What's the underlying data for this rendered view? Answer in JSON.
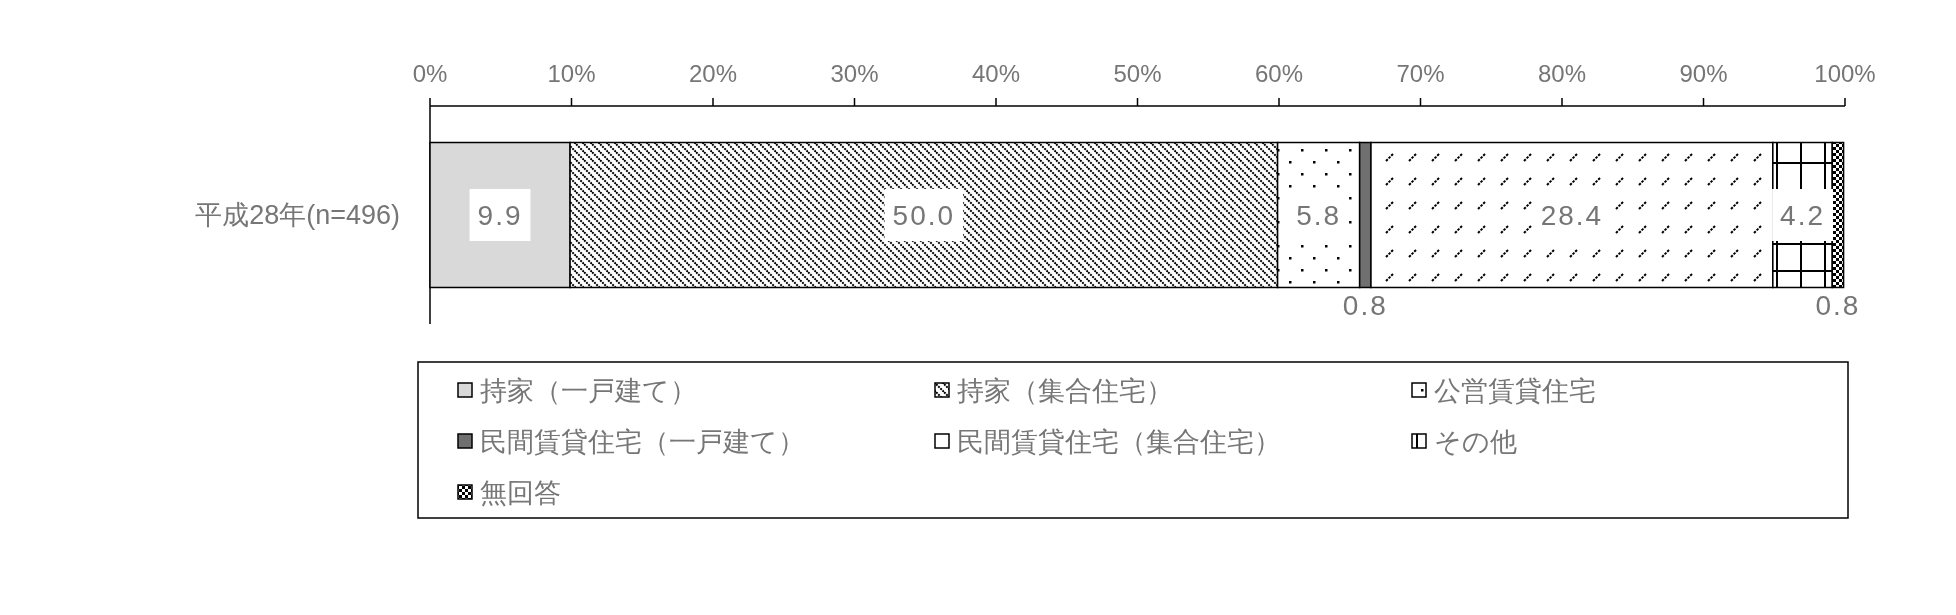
{
  "chart_data": {
    "type": "bar",
    "orientation": "horizontal",
    "stacked": true,
    "categories": [
      "平成28年(n=496)"
    ],
    "xlim": [
      0,
      100
    ],
    "xticks": [
      {
        "value": 0,
        "label": "0%"
      },
      {
        "value": 10,
        "label": "10%"
      },
      {
        "value": 20,
        "label": "20%"
      },
      {
        "value": 30,
        "label": "30%"
      },
      {
        "value": 40,
        "label": "40%"
      },
      {
        "value": 50,
        "label": "50%"
      },
      {
        "value": 60,
        "label": "60%"
      },
      {
        "value": 70,
        "label": "70%"
      },
      {
        "value": 80,
        "label": "80%"
      },
      {
        "value": 90,
        "label": "90%"
      },
      {
        "value": 100,
        "label": "100%"
      }
    ],
    "legend": "bottom",
    "series": [
      {
        "name": "持家（一戸建て）",
        "color": "#d9d9d9",
        "values": [
          9.9
        ],
        "value_labels": [
          "9.9"
        ]
      },
      {
        "name": "持家（集合住宅）",
        "color": "#000000",
        "values": [
          50.0
        ],
        "value_labels": [
          "50.0"
        ]
      },
      {
        "name": "公営賃貸住宅",
        "color": "#000000",
        "values": [
          5.8
        ],
        "value_labels": [
          "5.8"
        ]
      },
      {
        "name": "民間賃貸住宅（一戸建て）",
        "color": "#707070",
        "values": [
          0.8
        ],
        "value_labels": [
          "0.8"
        ]
      },
      {
        "name": "民間賃貸住宅（集合住宅）",
        "color": "#000000",
        "values": [
          28.4
        ],
        "value_labels": [
          "28.4"
        ]
      },
      {
        "name": "その他",
        "color": "#000000",
        "values": [
          4.2
        ],
        "value_labels": [
          "4.2"
        ]
      },
      {
        "name": "無回答",
        "color": "#000000",
        "values": [
          0.8
        ],
        "value_labels": [
          "0.8"
        ]
      }
    ]
  }
}
